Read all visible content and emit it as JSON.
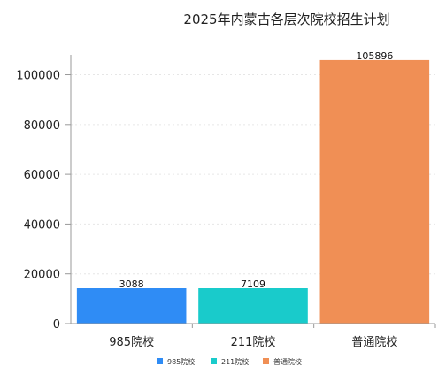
{
  "chart_data": {
    "type": "bar",
    "title": "2025年内蒙古各层次院校招生计划",
    "categories": [
      "985院校",
      "211院校",
      "普通院校"
    ],
    "values": [
      3088,
      7109,
      105896
    ],
    "data_labels": [
      "3088",
      "7109",
      "105896"
    ],
    "yticks": [
      "0",
      "20000",
      "40000",
      "60000",
      "80000",
      "100000"
    ],
    "ytick_values": [
      0,
      20000,
      40000,
      60000,
      80000,
      100000
    ],
    "ylim": [
      0,
      108000
    ],
    "colors": [
      "#2f8cf5",
      "#19cbcb",
      "#f08f55"
    ],
    "legend": {
      "entries": [
        "985院校",
        "211院校",
        "普通院校"
      ],
      "position": "bottom"
    },
    "grid": "horizontal-dotted"
  }
}
